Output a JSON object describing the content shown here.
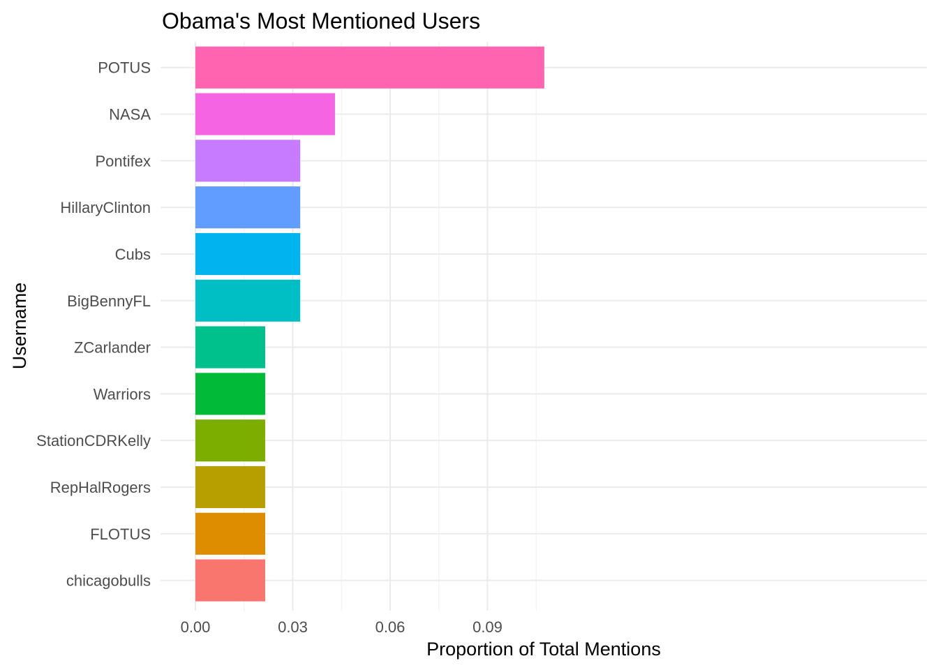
{
  "chart_data": {
    "type": "bar",
    "orientation": "horizontal",
    "title": "Obama's Most Mentioned Users",
    "xlabel": "Proportion of Total Mentions",
    "ylabel": "Username",
    "xlim": [
      0,
      0.1075
    ],
    "x_ticks": [
      0.0,
      0.03,
      0.06,
      0.09
    ],
    "x_tick_labels": [
      "0.00",
      "0.03",
      "0.06",
      "0.09"
    ],
    "grid": true,
    "legend": "none",
    "categories": [
      "POTUS",
      "NASA",
      "Pontifex",
      "HillaryClinton",
      "Cubs",
      "BigBennyFL",
      "ZCarlander",
      "Warriors",
      "StationCDRKelly",
      "RepHalRogers",
      "FLOTUS",
      "chicagobulls"
    ],
    "values": [
      0.1075,
      0.043,
      0.0323,
      0.0323,
      0.0323,
      0.0323,
      0.0215,
      0.0215,
      0.0215,
      0.0215,
      0.0215,
      0.0215
    ],
    "colors": [
      "#FF64B0",
      "#F564E3",
      "#C77CFF",
      "#619CFF",
      "#00B4F0",
      "#00BFC4",
      "#00C08B",
      "#00BA38",
      "#7CAE00",
      "#B79F00",
      "#DE8C00",
      "#F8766D"
    ]
  }
}
